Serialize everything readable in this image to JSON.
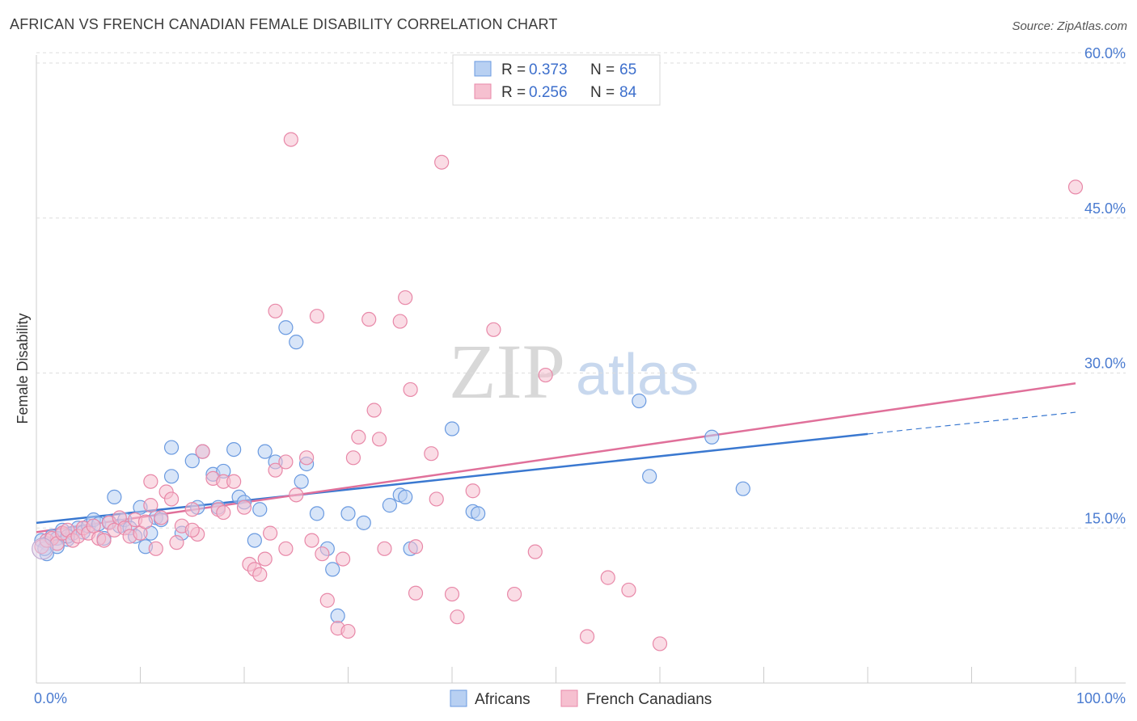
{
  "title": "AFRICAN VS FRENCH CANADIAN FEMALE DISABILITY CORRELATION CHART",
  "source": "Source: ZipAtlas.com",
  "watermark": {
    "zip": "ZIP",
    "atlas": "atlas"
  },
  "chart_data": {
    "type": "scatter",
    "ylabel": "Female Disability",
    "xlabel": "",
    "xlim": [
      0,
      100
    ],
    "ylim": [
      0,
      60
    ],
    "x_tick_labels": [
      "0.0%",
      "100.0%"
    ],
    "y_ticks": [
      15,
      30,
      45,
      60
    ],
    "y_tick_labels": [
      "15.0%",
      "30.0%",
      "45.0%",
      "60.0%"
    ],
    "legend": [
      {
        "r_label": "R =",
        "r": "0.373",
        "n_label": "N =",
        "n": "65"
      },
      {
        "r_label": "R =",
        "r": "0.256",
        "n_label": "N =",
        "n": "84"
      }
    ],
    "bottom_legend": [
      "Africans",
      "French Canadians"
    ],
    "series": [
      {
        "name": "Africans",
        "color": "#6a9ae0",
        "fill": "#b8d0f2",
        "trend": {
          "x0": 0,
          "y0": 15.5,
          "x1": 80,
          "y1": 24.1,
          "dash_to": 100,
          "dash_y": 26.2
        },
        "points": [
          [
            0.5,
            13.8
          ],
          [
            1,
            13.5
          ],
          [
            1.5,
            14.2
          ],
          [
            2,
            14.0
          ],
          [
            2.5,
            14.8
          ],
          [
            3,
            13.9
          ],
          [
            3.5,
            14.5
          ],
          [
            4,
            15.0
          ],
          [
            4.5,
            14.6
          ],
          [
            5,
            15.2
          ],
          [
            5.5,
            15.8
          ],
          [
            6,
            15.4
          ],
          [
            6.5,
            14.0
          ],
          [
            7,
            15.6
          ],
          [
            7.5,
            18.0
          ],
          [
            8,
            15.2
          ],
          [
            8.5,
            15.8
          ],
          [
            9,
            15.0
          ],
          [
            9.5,
            14.2
          ],
          [
            10,
            17.0
          ],
          [
            10.5,
            13.2
          ],
          [
            11,
            14.5
          ],
          [
            11.5,
            16.0
          ],
          [
            12,
            15.8
          ],
          [
            13,
            20.0
          ],
          [
            13,
            22.8
          ],
          [
            14,
            14.5
          ],
          [
            15,
            21.5
          ],
          [
            15.5,
            17.0
          ],
          [
            16,
            22.4
          ],
          [
            17,
            20.2
          ],
          [
            17.5,
            17.0
          ],
          [
            18,
            20.5
          ],
          [
            19,
            22.6
          ],
          [
            19.5,
            18.0
          ],
          [
            20,
            17.5
          ],
          [
            21,
            13.8
          ],
          [
            21.5,
            16.8
          ],
          [
            22,
            22.4
          ],
          [
            23,
            21.4
          ],
          [
            24,
            34.4
          ],
          [
            25,
            33.0
          ],
          [
            25.5,
            19.5
          ],
          [
            26,
            21.2
          ],
          [
            27,
            16.4
          ],
          [
            28,
            13.0
          ],
          [
            28.5,
            11.0
          ],
          [
            29,
            6.5
          ],
          [
            30,
            16.4
          ],
          [
            31.5,
            15.5
          ],
          [
            34,
            17.2
          ],
          [
            35,
            18.2
          ],
          [
            35.5,
            18.0
          ],
          [
            36,
            13.0
          ],
          [
            40,
            24.6
          ],
          [
            42,
            16.6
          ],
          [
            42.5,
            16.4
          ],
          [
            58,
            27.3
          ],
          [
            59,
            20.0
          ],
          [
            65,
            23.8
          ],
          [
            68,
            18.8
          ],
          [
            1,
            12.5
          ],
          [
            0.8,
            13.0
          ],
          [
            2,
            13.2
          ],
          [
            3,
            14.2
          ]
        ]
      },
      {
        "name": "French Canadians",
        "color": "#e888a8",
        "fill": "#f6c0d0",
        "trend": {
          "x0": 0,
          "y0": 14.6,
          "x1": 100,
          "y1": 29.0
        },
        "points": [
          [
            0.5,
            13.2
          ],
          [
            1,
            13.8
          ],
          [
            1.5,
            14.0
          ],
          [
            2,
            13.5
          ],
          [
            2.5,
            14.5
          ],
          [
            3,
            14.8
          ],
          [
            3.5,
            13.8
          ],
          [
            4,
            14.2
          ],
          [
            4.5,
            15.0
          ],
          [
            5,
            14.5
          ],
          [
            5.5,
            15.2
          ],
          [
            6,
            14.0
          ],
          [
            6.5,
            13.8
          ],
          [
            7,
            15.5
          ],
          [
            7.5,
            14.8
          ],
          [
            8,
            16.0
          ],
          [
            8.5,
            15.0
          ],
          [
            9,
            14.2
          ],
          [
            9.5,
            15.8
          ],
          [
            10,
            14.5
          ],
          [
            10.5,
            15.6
          ],
          [
            11,
            17.2
          ],
          [
            11.5,
            13.0
          ],
          [
            12,
            16.0
          ],
          [
            12.5,
            18.5
          ],
          [
            13,
            17.8
          ],
          [
            13.5,
            13.6
          ],
          [
            14,
            15.2
          ],
          [
            15,
            16.8
          ],
          [
            15.5,
            14.4
          ],
          [
            16,
            22.4
          ],
          [
            17,
            19.8
          ],
          [
            17.5,
            16.8
          ],
          [
            18,
            19.5
          ],
          [
            19,
            19.5
          ],
          [
            20,
            17.0
          ],
          [
            20.5,
            11.5
          ],
          [
            21,
            11.0
          ],
          [
            21.5,
            10.5
          ],
          [
            22,
            12.0
          ],
          [
            22.5,
            14.5
          ],
          [
            23,
            20.6
          ],
          [
            24,
            21.4
          ],
          [
            24.5,
            52.6
          ],
          [
            25,
            18.2
          ],
          [
            26,
            21.8
          ],
          [
            27,
            35.5
          ],
          [
            27.5,
            12.5
          ],
          [
            28,
            8.0
          ],
          [
            29,
            5.3
          ],
          [
            29.5,
            12.0
          ],
          [
            30,
            5.0
          ],
          [
            30.5,
            21.8
          ],
          [
            31,
            23.8
          ],
          [
            32,
            35.2
          ],
          [
            32.5,
            26.4
          ],
          [
            33,
            23.6
          ],
          [
            33.5,
            13.0
          ],
          [
            35,
            35.0
          ],
          [
            35.5,
            37.3
          ],
          [
            36,
            28.4
          ],
          [
            36.5,
            8.7
          ],
          [
            38,
            22.2
          ],
          [
            38.5,
            17.8
          ],
          [
            39,
            50.4
          ],
          [
            40,
            8.6
          ],
          [
            40.5,
            6.4
          ],
          [
            42,
            18.6
          ],
          [
            44,
            34.2
          ],
          [
            46,
            8.6
          ],
          [
            48,
            12.7
          ],
          [
            49,
            29.8
          ],
          [
            53,
            4.5
          ],
          [
            55,
            10.2
          ],
          [
            57,
            9.0
          ],
          [
            60,
            3.8
          ],
          [
            100,
            48.0
          ],
          [
            23,
            36.0
          ],
          [
            26.5,
            13.8
          ],
          [
            36.5,
            13.2
          ],
          [
            11,
            19.5
          ],
          [
            18,
            16.5
          ],
          [
            24,
            13.0
          ],
          [
            15,
            14.8
          ]
        ]
      }
    ]
  }
}
